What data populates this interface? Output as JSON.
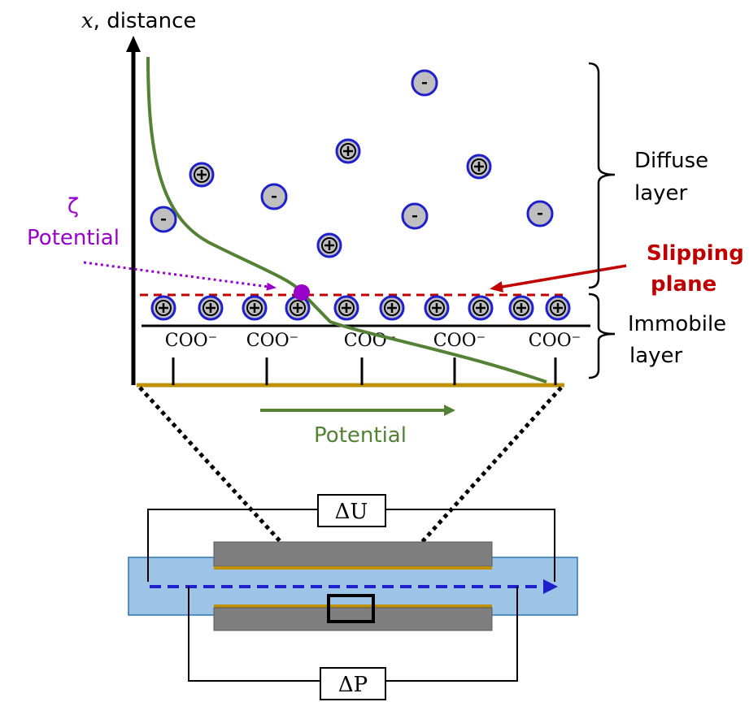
{
  "axis": {
    "var": "x",
    "rest": ", distance"
  },
  "labels": {
    "zeta": "ζ",
    "zeta_potential": "Potential",
    "slipping_line1": "Slipping",
    "slipping_line2": "plane",
    "diffuse_line1": "Diffuse",
    "diffuse_line2": "layer",
    "immobile_line1": "Immobile",
    "immobile_line2": "layer",
    "potential_arrow": "Potential",
    "group": "COO⁻",
    "delta_u": "ΔU",
    "delta_p": "ΔP",
    "plus": "+",
    "minus": "-"
  },
  "colors": {
    "curve": "#548235",
    "slipping": "#c00000",
    "zeta": "#9900cc",
    "wall": "#bf9000",
    "ion_fill": "#bfbfbf",
    "ion_ring": "#1f1fcc",
    "channel": "#9dc3e6",
    "flow": "#1f1fcc",
    "plate": "#7f7f7f"
  }
}
